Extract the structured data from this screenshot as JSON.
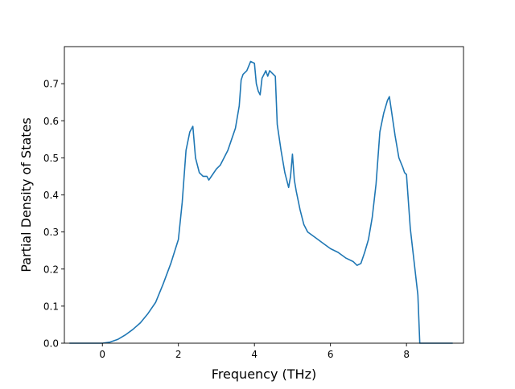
{
  "chart_data": {
    "type": "line",
    "title": "",
    "xlabel": "Frequency (THz)",
    "ylabel": "Partial Density of States",
    "xlim": [
      -1.0,
      9.5
    ],
    "ylim": [
      0.0,
      0.8
    ],
    "x_ticks": [
      0,
      2,
      4,
      6,
      8
    ],
    "y_ticks": [
      0.0,
      0.1,
      0.2,
      0.3,
      0.4,
      0.5,
      0.6,
      0.7
    ],
    "x_tick_labels": [
      "0",
      "2",
      "4",
      "6",
      "8"
    ],
    "y_tick_labels": [
      "0.0",
      "0.1",
      "0.2",
      "0.3",
      "0.4",
      "0.5",
      "0.6",
      "0.7"
    ],
    "grid": false,
    "legend": "none",
    "series": [
      {
        "color": "#1f77b4",
        "x": [
          -0.85,
          0.0,
          0.2,
          0.4,
          0.6,
          0.8,
          1.0,
          1.2,
          1.4,
          1.6,
          1.8,
          2.0,
          2.1,
          2.2,
          2.3,
          2.38,
          2.45,
          2.55,
          2.65,
          2.75,
          2.8,
          2.9,
          3.0,
          3.1,
          3.2,
          3.3,
          3.4,
          3.5,
          3.6,
          3.65,
          3.7,
          3.8,
          3.9,
          4.0,
          4.05,
          4.1,
          4.15,
          4.2,
          4.3,
          4.35,
          4.4,
          4.45,
          4.55,
          4.6,
          4.7,
          4.8,
          4.9,
          4.95,
          5.0,
          5.05,
          5.1,
          5.2,
          5.3,
          5.4,
          5.6,
          5.8,
          6.0,
          6.2,
          6.4,
          6.6,
          6.7,
          6.8,
          6.9,
          7.0,
          7.1,
          7.2,
          7.3,
          7.4,
          7.5,
          7.55,
          7.6,
          7.7,
          7.8,
          7.9,
          7.95,
          8.0,
          8.1,
          8.2,
          8.3,
          8.35,
          8.5,
          8.8,
          9.2
        ],
        "y": [
          0.0,
          0.0,
          0.003,
          0.01,
          0.022,
          0.037,
          0.055,
          0.08,
          0.11,
          0.16,
          0.215,
          0.28,
          0.38,
          0.52,
          0.57,
          0.585,
          0.5,
          0.46,
          0.45,
          0.45,
          0.44,
          0.455,
          0.47,
          0.48,
          0.5,
          0.52,
          0.55,
          0.58,
          0.64,
          0.71,
          0.725,
          0.735,
          0.76,
          0.755,
          0.7,
          0.68,
          0.67,
          0.715,
          0.735,
          0.72,
          0.735,
          0.73,
          0.72,
          0.59,
          0.52,
          0.46,
          0.42,
          0.45,
          0.51,
          0.44,
          0.41,
          0.36,
          0.32,
          0.3,
          0.285,
          0.27,
          0.255,
          0.245,
          0.23,
          0.22,
          0.21,
          0.215,
          0.245,
          0.28,
          0.34,
          0.43,
          0.57,
          0.62,
          0.655,
          0.665,
          0.63,
          0.56,
          0.5,
          0.475,
          0.46,
          0.455,
          0.31,
          0.22,
          0.13,
          0.0,
          0.0,
          0.0,
          0.0
        ]
      }
    ]
  }
}
